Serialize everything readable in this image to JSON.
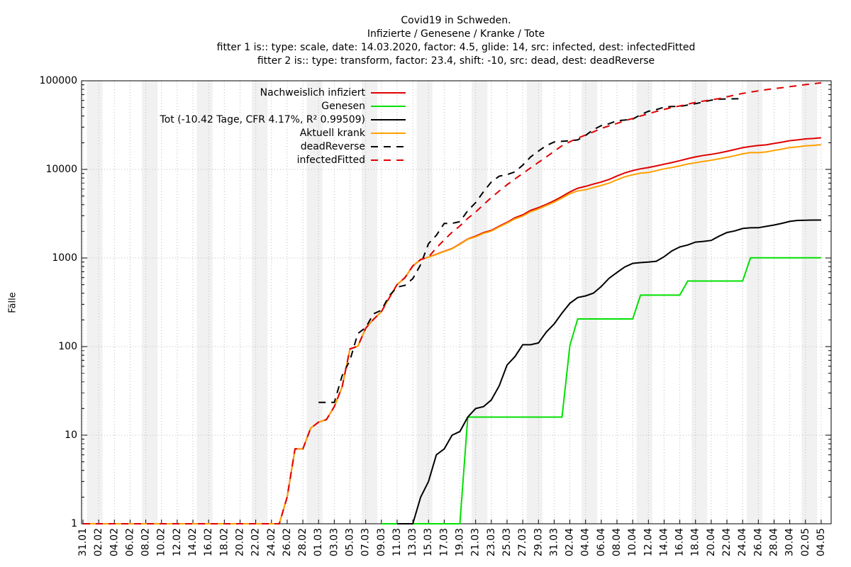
{
  "chart_data": {
    "type": "line",
    "title": "Covid19 in Schweden.",
    "subtitle": "Infizierte / Genesene / Kranke / Tote",
    "annotations": [
      "fitter 1 is:: type: scale, date: 14.03.2020, factor: 4.5, glide: 14, src: infected, dest: infectedFitted",
      "fitter 2 is:: type: transform, factor: 23.4, shift: -10, src: dead, dest: deadReverse"
    ],
    "y_label": "Fälle",
    "log_y": true,
    "grid": true,
    "legend": "top-left",
    "ylim": [
      1,
      100000
    ],
    "yticks": [
      1,
      10,
      100,
      1000,
      10000,
      100000
    ],
    "categories": [
      "31.01",
      null,
      "02.02",
      null,
      "04.02",
      null,
      "06.02",
      null,
      "08.02",
      null,
      "10.02",
      null,
      "12.02",
      null,
      "14.02",
      null,
      "16.02",
      null,
      "18.02",
      null,
      "20.02",
      null,
      "22.02",
      null,
      "24.02",
      null,
      "26.02",
      null,
      "28.02",
      null,
      "01.03",
      null,
      "03.03",
      null,
      "05.03",
      null,
      "07.03",
      null,
      "09.03",
      null,
      "11.03",
      null,
      "13.03",
      null,
      "15.03",
      null,
      "17.03",
      null,
      "19.03",
      null,
      "21.03",
      null,
      "23.03",
      null,
      "25.03",
      null,
      "27.03",
      null,
      "29.03",
      null,
      "31.03",
      null,
      "02.04",
      null,
      "04.04",
      null,
      "06.04",
      null,
      "08.04",
      null,
      "10.04",
      null,
      "12.04",
      null,
      "14.04",
      null,
      "16.04",
      null,
      "18.04",
      null,
      "20.04",
      null,
      "22.04",
      null,
      "24.04",
      null,
      "26.04",
      null,
      "28.04",
      null,
      "30.04",
      null,
      "02.05",
      null,
      "04.05",
      null
    ],
    "series": [
      {
        "name": "Nachweislich infiziert",
        "color": "#e00000",
        "dashed": false,
        "values": [
          1,
          1,
          1,
          1,
          1,
          1,
          1,
          1,
          1,
          1,
          1,
          1,
          1,
          1,
          1,
          1,
          1,
          1,
          1,
          1,
          1,
          1,
          1,
          1,
          1,
          1,
          2,
          7,
          7,
          12,
          14,
          15,
          21,
          35,
          94,
          101,
          161,
          203,
          248,
          355,
          500,
          599,
          814,
          961,
          1022,
          1103,
          1190,
          1279,
          1439,
          1639,
          1763,
          1934,
          2046,
          2286,
          2526,
          2840,
          3069,
          3447,
          3700,
          4028,
          4435,
          4947,
          5568,
          6131,
          6443,
          6830,
          7206,
          7693,
          8419,
          9141,
          9685,
          10151,
          10483,
          10948,
          11445,
          11927,
          12540,
          13216,
          13822,
          14385,
          14777,
          15322,
          16004,
          16755,
          17567,
          18177,
          18640,
          18926,
          19621,
          20302,
          21092,
          21520,
          22082,
          22317,
          22721,
          null
        ]
      },
      {
        "name": "Genesen",
        "color": "#00e000",
        "dashed": false,
        "values": [
          null,
          null,
          null,
          null,
          null,
          null,
          null,
          null,
          null,
          null,
          null,
          null,
          null,
          null,
          null,
          null,
          null,
          null,
          null,
          null,
          null,
          null,
          null,
          null,
          null,
          null,
          null,
          null,
          null,
          null,
          null,
          null,
          null,
          null,
          null,
          null,
          null,
          null,
          1,
          1,
          1,
          1,
          1,
          1,
          1,
          1,
          1,
          1,
          1,
          16,
          16,
          16,
          16,
          16,
          16,
          16,
          16,
          16,
          16,
          16,
          16,
          16,
          103,
          205,
          205,
          205,
          205,
          205,
          205,
          205,
          205,
          381,
          381,
          381,
          381,
          381,
          381,
          550,
          550,
          550,
          550,
          550,
          550,
          550,
          550,
          1005,
          1005,
          1005,
          1005,
          1005,
          1005,
          1005,
          1005,
          1005,
          1005,
          null
        ]
      },
      {
        "name": "Tot (-10.42 Tage, CFR 4.17%, R² 0.99509)",
        "color": "#000000",
        "dashed": false,
        "values": [
          null,
          null,
          null,
          null,
          null,
          null,
          null,
          null,
          null,
          null,
          null,
          null,
          null,
          null,
          null,
          null,
          null,
          null,
          null,
          null,
          null,
          null,
          null,
          null,
          null,
          null,
          null,
          null,
          null,
          null,
          null,
          null,
          null,
          null,
          null,
          null,
          null,
          null,
          null,
          null,
          1,
          1,
          1,
          2,
          3,
          6,
          7,
          10,
          11,
          16,
          20,
          21,
          25,
          36,
          62,
          77,
          105,
          105,
          110,
          146,
          180,
          239,
          308,
          358,
          373,
          401,
          477,
          591,
          687,
          793,
          870,
          887,
          899,
          919,
          1033,
          1203,
          1333,
          1400,
          1511,
          1540,
          1580,
          1765,
          1937,
          2021,
          2152,
          2192,
          2194,
          2274,
          2355,
          2462,
          2586,
          2653,
          2669,
          2679,
          2680,
          null
        ]
      },
      {
        "name": "Aktuell krank",
        "color": "#ffa000",
        "dashed": false,
        "values": [
          1,
          1,
          1,
          1,
          1,
          1,
          1,
          1,
          1,
          1,
          1,
          1,
          1,
          1,
          1,
          1,
          1,
          1,
          1,
          1,
          1,
          1,
          1,
          1,
          1,
          1,
          2,
          7,
          7,
          12,
          14,
          15,
          21,
          35,
          94,
          101,
          161,
          203,
          248,
          355,
          500,
          599,
          814,
          961,
          1019,
          1099,
          1183,
          1271,
          1428,
          1627,
          1731,
          1898,
          2009,
          2245,
          2474,
          2762,
          2976,
          3326,
          3579,
          3902,
          4273,
          4751,
          5313,
          5720,
          5880,
          6252,
          6600,
          7011,
          7623,
          8249,
          8687,
          9076,
          9215,
          9668,
          10145,
          10513,
          10956,
          11502,
          11872,
          12324,
          12687,
          13192,
          13689,
          14268,
          14996,
          15475,
          15443,
          15727,
          16342,
          16942,
          17625,
          17929,
          18424,
          18643,
          19037,
          null
        ]
      },
      {
        "name": "deadReverse",
        "color": "#000000",
        "dashed": true,
        "values": [
          null,
          null,
          null,
          null,
          null,
          null,
          null,
          null,
          null,
          null,
          null,
          null,
          null,
          null,
          null,
          null,
          null,
          null,
          null,
          null,
          null,
          null,
          null,
          null,
          null,
          null,
          null,
          null,
          null,
          null,
          23.4,
          23.4,
          23.4,
          46.8,
          70.2,
          140.4,
          163.8,
          234,
          257.4,
          374.4,
          468,
          491.4,
          585,
          842.4,
          1450.8,
          1801.8,
          2457,
          2457,
          2574,
          3416.4,
          4212,
          5592.6,
          7207.2,
          8377.2,
          8728.2,
          9383.4,
          11161.8,
          13829.4,
          16075.8,
          18556.2,
          20358,
          20755.8,
          21036.6,
          21504.6,
          24172.2,
          28150.2,
          31192.2,
          32760,
          35357.4,
          36036,
          36972,
          41301,
          45325.8,
          47291.4,
          50357,
          51293,
          51339.6,
          53211.6,
          55106.8,
          57610.8,
          60512.4,
          62080.2,
          62454.6,
          62688.6,
          62712,
          null,
          null,
          null,
          null,
          null,
          null,
          null,
          null,
          null,
          null,
          null
        ]
      },
      {
        "name": "infectedFitted",
        "color": "#e00000",
        "dashed": true,
        "values": [
          1,
          1,
          1,
          1,
          1,
          1,
          1,
          1,
          1,
          1,
          1,
          1,
          1,
          1,
          1,
          1,
          1,
          1,
          1,
          1,
          1,
          1,
          1,
          1,
          1,
          1,
          2,
          7,
          7,
          12,
          14,
          15,
          21,
          35,
          94,
          101,
          161,
          203,
          248,
          355,
          500,
          599,
          814,
          961,
          1022,
          1300,
          1600,
          1950,
          2300,
          2800,
          3300,
          4000,
          4800,
          5700,
          6700,
          7800,
          9000,
          10400,
          12000,
          13800,
          16000,
          18500,
          20500,
          22500,
          24500,
          26500,
          29000,
          31000,
          33000,
          35500,
          37500,
          40000,
          42500,
          45000,
          47500,
          50000,
          52000,
          54500,
          57000,
          59000,
          61000,
          63000,
          66000,
          69000,
          72000,
          74500,
          77000,
          79500,
          81500,
          83500,
          86000,
          88000,
          90500,
          92500,
          95000,
          null
        ]
      }
    ]
  }
}
